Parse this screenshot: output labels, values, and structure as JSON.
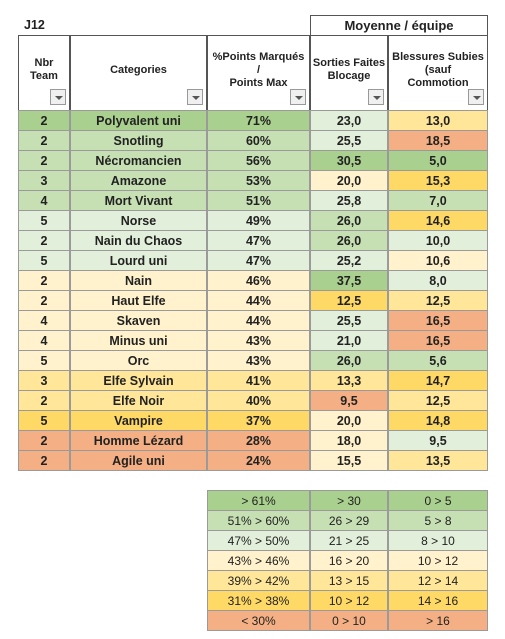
{
  "sheet": {
    "label": "J12",
    "group_header": "Moyenne / équipe",
    "headers": [
      "Nbr\nTeam",
      "Categories",
      "%Points Marqués\n/\nPoints Max",
      "Sorties Faites\nBlocage",
      "Blessures Subies\n(sauf\nCommotion"
    ],
    "rows": [
      {
        "cells": [
          "2",
          "Polyvalent uni",
          "71%",
          "23,0",
          "13,0"
        ],
        "colors": [
          "#a9d08e",
          "#e2efda",
          "#ffe699"
        ]
      },
      {
        "cells": [
          "2",
          "Snotling",
          "60%",
          "25,5",
          "18,5"
        ],
        "colors": [
          "#c6e0b4",
          "#e2efda",
          "#f4b084"
        ]
      },
      {
        "cells": [
          "2",
          "Nécromancien",
          "56%",
          "30,5",
          "5,0"
        ],
        "colors": [
          "#c6e0b4",
          "#a9d08e",
          "#a9d08e"
        ]
      },
      {
        "cells": [
          "3",
          "Amazone",
          "53%",
          "20,0",
          "15,3"
        ],
        "colors": [
          "#c6e0b4",
          "#fff2cc",
          "#ffd966"
        ]
      },
      {
        "cells": [
          "4",
          "Mort Vivant",
          "51%",
          "25,8",
          "7,0"
        ],
        "colors": [
          "#c6e0b4",
          "#e2efda",
          "#c6e0b4"
        ]
      },
      {
        "cells": [
          "5",
          "Norse",
          "49%",
          "26,0",
          "14,6"
        ],
        "colors": [
          "#e2efda",
          "#c6e0b4",
          "#ffd966"
        ]
      },
      {
        "cells": [
          "2",
          "Nain du Chaos",
          "47%",
          "26,0",
          "10,0"
        ],
        "colors": [
          "#e2efda",
          "#c6e0b4",
          "#e2efda"
        ]
      },
      {
        "cells": [
          "5",
          "Lourd uni",
          "47%",
          "25,2",
          "10,6"
        ],
        "colors": [
          "#e2efda",
          "#e2efda",
          "#fff2cc"
        ]
      },
      {
        "cells": [
          "2",
          "Nain",
          "46%",
          "37,5",
          "8,0"
        ],
        "colors": [
          "#fff2cc",
          "#a9d08e",
          "#e2efda"
        ]
      },
      {
        "cells": [
          "2",
          "Haut Elfe",
          "44%",
          "12,5",
          "12,5"
        ],
        "colors": [
          "#fff2cc",
          "#ffd966",
          "#ffe699"
        ]
      },
      {
        "cells": [
          "4",
          "Skaven",
          "44%",
          "25,5",
          "16,5"
        ],
        "colors": [
          "#fff2cc",
          "#e2efda",
          "#f4b084"
        ]
      },
      {
        "cells": [
          "4",
          "Minus uni",
          "43%",
          "21,0",
          "16,5"
        ],
        "colors": [
          "#fff2cc",
          "#e2efda",
          "#f4b084"
        ]
      },
      {
        "cells": [
          "5",
          "Orc",
          "43%",
          "26,0",
          "5,6"
        ],
        "colors": [
          "#fff2cc",
          "#c6e0b4",
          "#c6e0b4"
        ]
      },
      {
        "cells": [
          "3",
          "Elfe Sylvain",
          "41%",
          "13,3",
          "14,7"
        ],
        "colors": [
          "#ffe699",
          "#ffe699",
          "#ffd966"
        ]
      },
      {
        "cells": [
          "2",
          "Elfe Noir",
          "40%",
          "9,5",
          "12,5"
        ],
        "colors": [
          "#ffe699",
          "#f4b084",
          "#ffe699"
        ]
      },
      {
        "cells": [
          "5",
          "Vampire",
          "37%",
          "20,0",
          "14,8"
        ],
        "colors": [
          "#ffd966",
          "#fff2cc",
          "#ffd966"
        ]
      },
      {
        "cells": [
          "2",
          "Homme Lézard",
          "28%",
          "18,0",
          "9,5"
        ],
        "colors": [
          "#f4b084",
          "#fff2cc",
          "#e2efda"
        ]
      },
      {
        "cells": [
          "2",
          "Agile uni",
          "24%",
          "15,5",
          "13,5"
        ],
        "colors": [
          "#f4b084",
          "#fff2cc",
          "#ffe699"
        ]
      }
    ],
    "legend": [
      {
        "cells": [
          "> 61%",
          "> 30",
          "0 > 5"
        ],
        "color": "#a9d08e"
      },
      {
        "cells": [
          "51% > 60%",
          "26 > 29",
          "5 > 8"
        ],
        "color": "#c6e0b4"
      },
      {
        "cells": [
          "47% > 50%",
          "21 > 25",
          "8 > 10"
        ],
        "color": "#e2efda"
      },
      {
        "cells": [
          "43% > 46%",
          "16 > 20",
          "10 > 12"
        ],
        "color": "#fff2cc"
      },
      {
        "cells": [
          "39% > 42%",
          "13 > 15",
          "12 > 14"
        ],
        "color": "#ffe699"
      },
      {
        "cells": [
          "31% > 38%",
          "10 > 12",
          "14 > 16"
        ],
        "color": "#ffd966"
      },
      {
        "cells": [
          "< 30%",
          "0 > 10",
          "> 16"
        ],
        "color": "#f4b084"
      }
    ]
  }
}
